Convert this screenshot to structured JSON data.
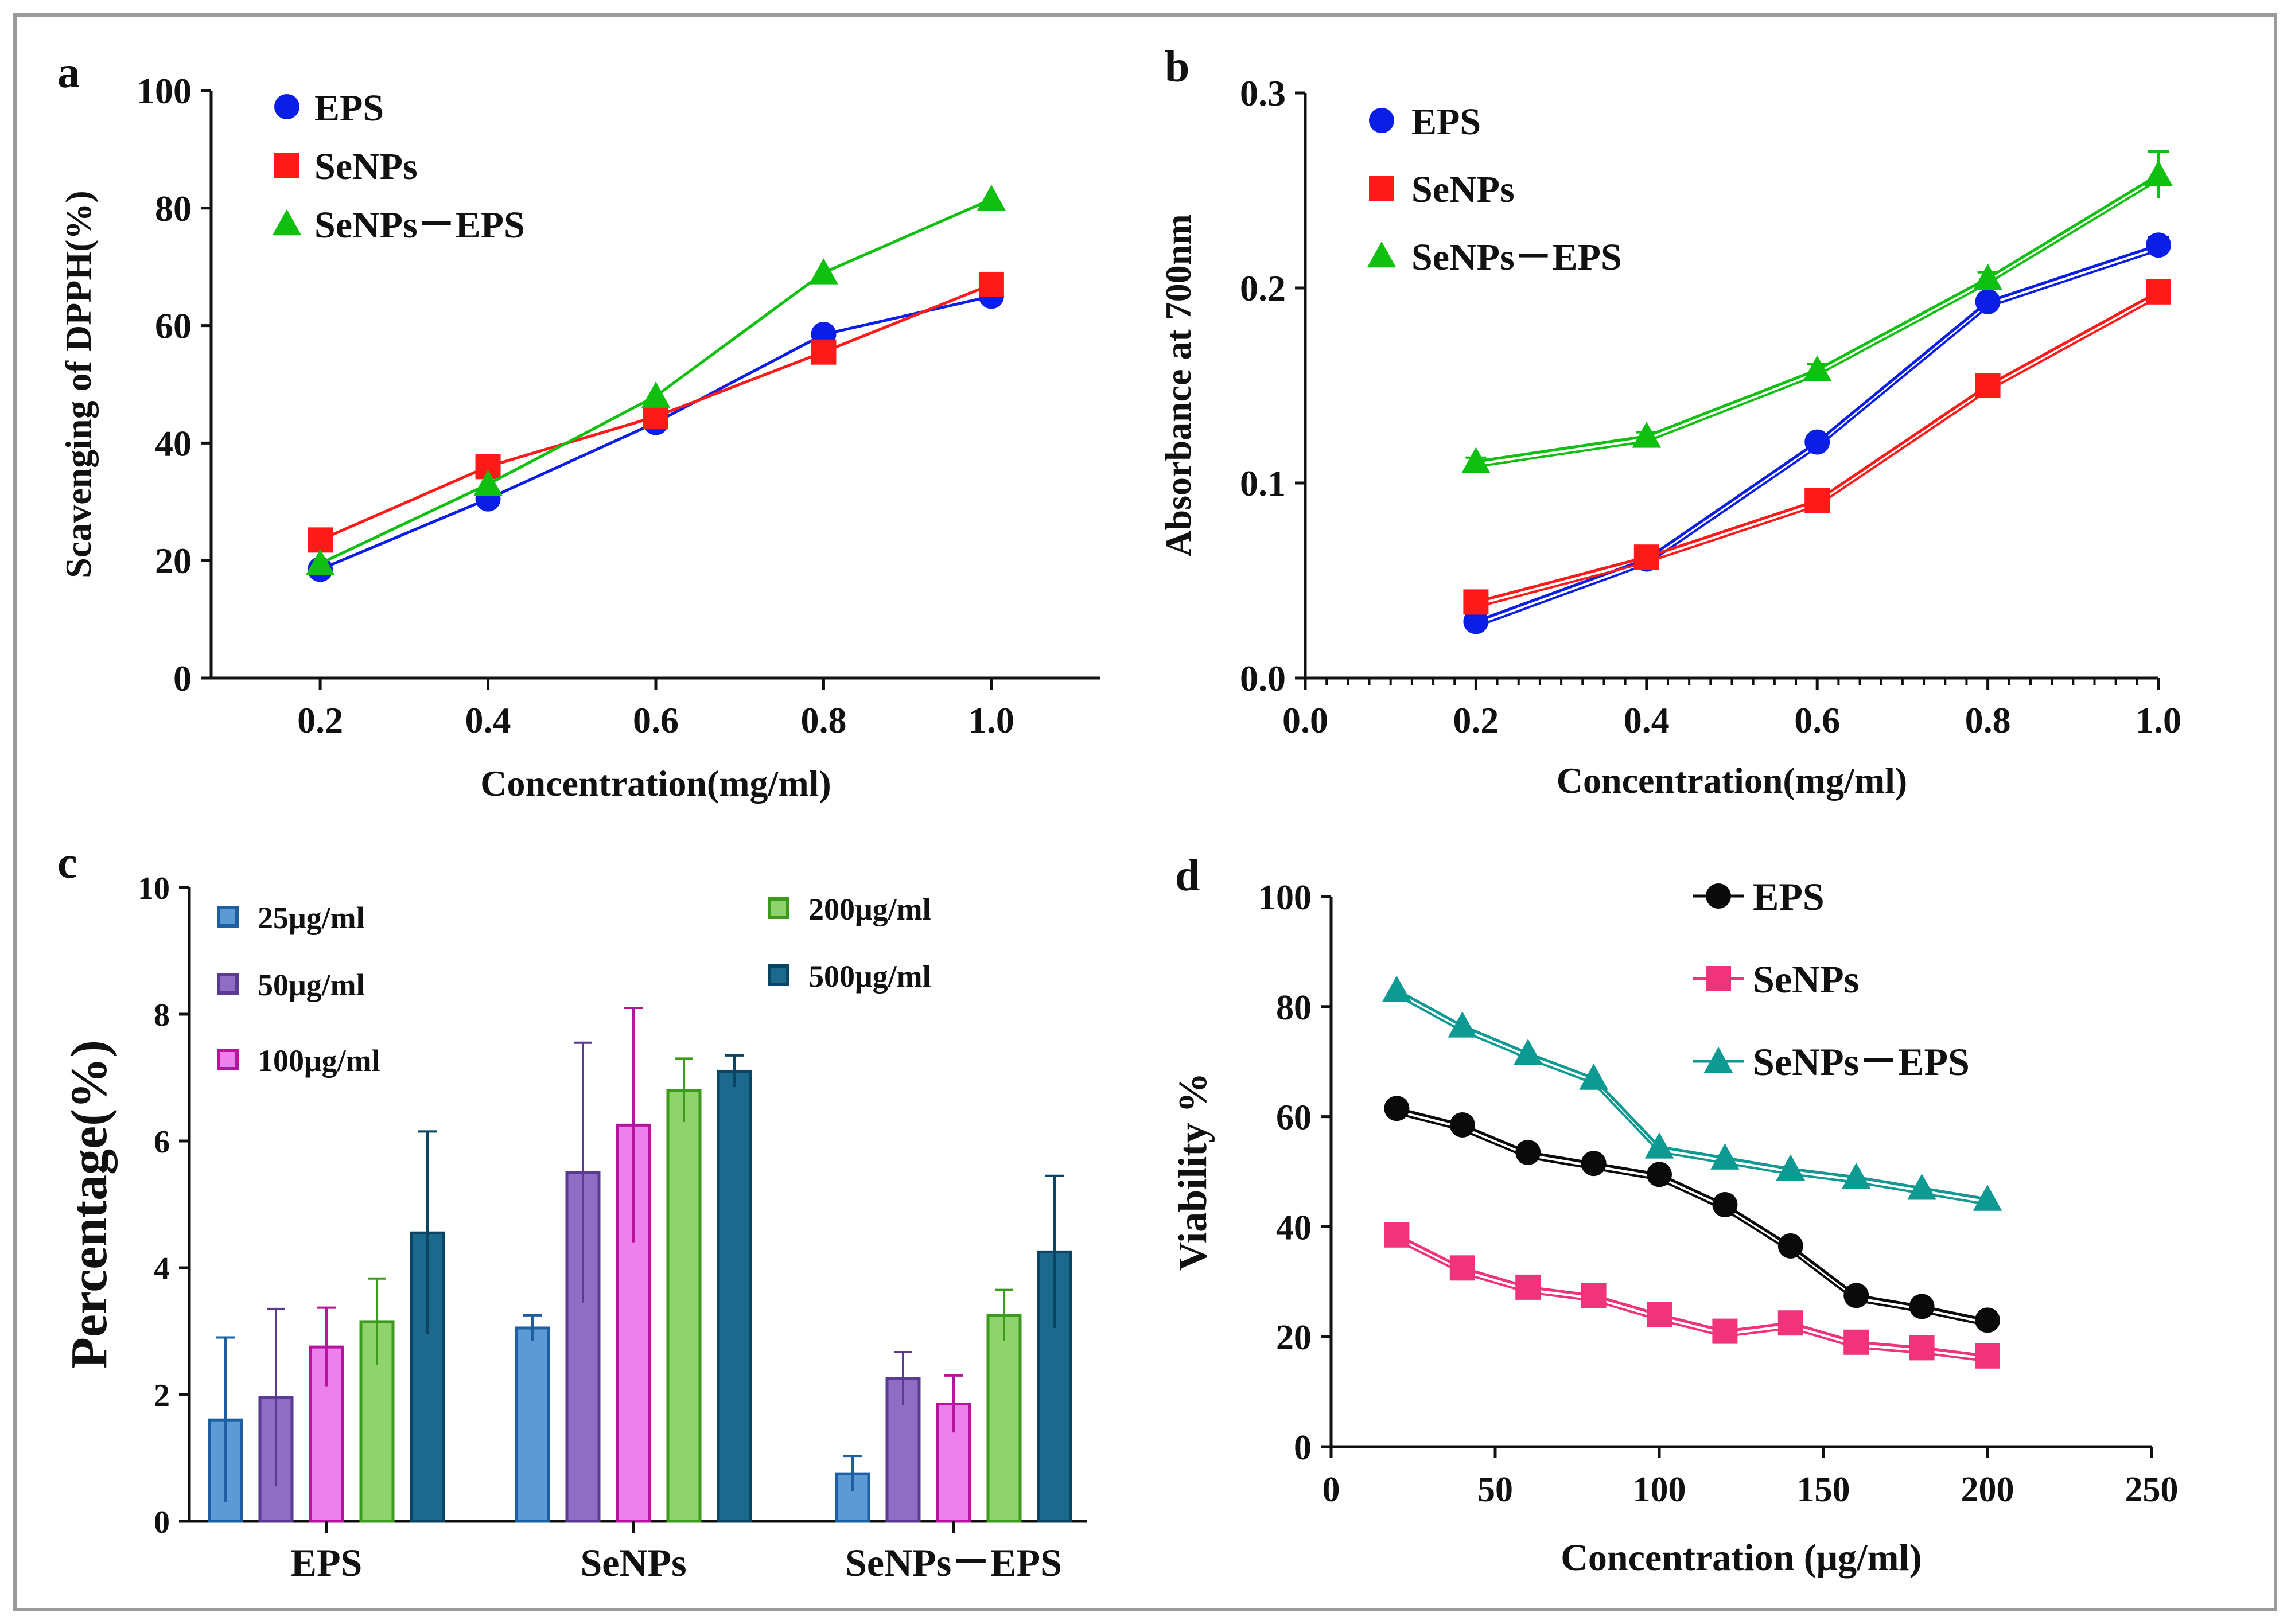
{
  "panels": {
    "a": "a",
    "b": "b",
    "c": "c",
    "d": "d"
  },
  "chart_data": [
    {
      "id": "a",
      "type": "line",
      "title": "",
      "xlabel": "Concentration(mg/ml)",
      "ylabel": "Scavenging of DPPH(%)",
      "x": [
        0.2,
        0.4,
        0.6,
        0.8,
        1.0
      ],
      "xlim": [
        0.07,
        1.13
      ],
      "ylim": [
        0,
        100
      ],
      "xticks": [
        0.2,
        0.4,
        0.6,
        0.8,
        1.0
      ],
      "xtick_labels": [
        "0.2",
        "0.4",
        "0.6",
        "0.8",
        "1.0"
      ],
      "yticks": [
        0,
        20,
        40,
        60,
        80,
        100
      ],
      "ytick_labels": [
        "0",
        "20",
        "40",
        "60",
        "80",
        "100"
      ],
      "legend_position": "top-left",
      "series": [
        {
          "name": "EPS",
          "marker": "circle",
          "color": "#0a1ee6",
          "values": [
            18.5,
            30.5,
            43.5,
            58.5,
            65.0
          ]
        },
        {
          "name": "SeNPs",
          "marker": "square",
          "color": "#ff1a1a",
          "values": [
            23.5,
            36.0,
            44.5,
            55.5,
            67.0
          ]
        },
        {
          "name": "SeNPs－EPS",
          "marker": "triangle",
          "color": "#10c010",
          "values": [
            19.5,
            33.0,
            48.0,
            69.0,
            81.5
          ]
        }
      ]
    },
    {
      "id": "b",
      "type": "line",
      "title": "",
      "xlabel": "Concentration(mg/ml)",
      "ylabel": "Absorbance at 700nm",
      "x": [
        0.2,
        0.4,
        0.6,
        0.8,
        1.0
      ],
      "xlim": [
        0.0,
        1.0
      ],
      "ylim": [
        0.0,
        0.3
      ],
      "xticks": [
        0.0,
        0.2,
        0.4,
        0.6,
        0.8,
        1.0
      ],
      "xtick_labels": [
        "0.0",
        "0.2",
        "0.4",
        "0.6",
        "0.8",
        "1.0"
      ],
      "yticks": [
        0.0,
        0.1,
        0.2,
        0.3
      ],
      "ytick_labels": [
        "0.0",
        "0.1",
        "0.2",
        "0.3"
      ],
      "legend_position": "top-left",
      "series": [
        {
          "name": "EPS",
          "marker": "circle",
          "color": "#0a1ee6",
          "values": [
            0.029,
            0.061,
            0.121,
            0.193,
            0.222
          ],
          "errors": [
            0.002,
            0.002,
            0.003,
            0.003,
            0.004
          ]
        },
        {
          "name": "SeNPs",
          "marker": "square",
          "color": "#ff1a1a",
          "values": [
            0.039,
            0.062,
            0.091,
            0.15,
            0.198
          ],
          "errors": [
            0.002,
            0.002,
            0.003,
            0.003,
            0.003
          ]
        },
        {
          "name": "SeNPs－EPS",
          "marker": "triangle",
          "color": "#10c010",
          "values": [
            0.111,
            0.124,
            0.158,
            0.205,
            0.258
          ],
          "errors": [
            0.002,
            0.002,
            0.003,
            0.003,
            0.012
          ]
        }
      ]
    },
    {
      "id": "c",
      "type": "bar",
      "title": "",
      "xlabel": "",
      "ylabel": "Percentage(%)",
      "categories": [
        "EPS",
        "SeNPs",
        "SeNPs－EPS"
      ],
      "ylim": [
        0,
        10
      ],
      "yticks": [
        0,
        2,
        4,
        6,
        8,
        10
      ],
      "ytick_labels": [
        "0",
        "2",
        "4",
        "6",
        "8",
        "10"
      ],
      "legend_position": "top",
      "series": [
        {
          "name": "25μg/ml",
          "fill": "#5b9ad5",
          "edge": "#1d5fa0",
          "values": [
            1.6,
            3.05,
            0.75
          ],
          "errors": [
            1.3,
            0.2,
            0.28
          ]
        },
        {
          "name": "50μg/ml",
          "fill": "#8e6ec4",
          "edge": "#5b3a94",
          "values": [
            1.95,
            5.5,
            2.25
          ],
          "errors": [
            1.4,
            2.05,
            0.42
          ]
        },
        {
          "name": "100μg/ml",
          "fill": "#ee80ee",
          "edge": "#b5149e",
          "values": [
            2.75,
            6.25,
            1.85
          ],
          "errors": [
            0.62,
            1.85,
            0.45
          ]
        },
        {
          "name": "200μg/ml",
          "fill": "#8fd36d",
          "edge": "#3c9a1c",
          "values": [
            3.15,
            6.8,
            3.25
          ],
          "errors": [
            0.68,
            0.5,
            0.4
          ]
        },
        {
          "name": "500μg/ml",
          "fill": "#1b6a8e",
          "edge": "#0b4563",
          "values": [
            4.55,
            7.1,
            4.25
          ],
          "errors": [
            1.6,
            0.25,
            1.2
          ]
        }
      ]
    },
    {
      "id": "d",
      "type": "line",
      "title": "",
      "xlabel": "Concentration (μg/ml)",
      "ylabel": "Viability %",
      "x": [
        20,
        40,
        60,
        80,
        100,
        120,
        140,
        160,
        180,
        200
      ],
      "xlim": [
        0,
        250
      ],
      "ylim": [
        0,
        100
      ],
      "xticks": [
        0,
        50,
        100,
        150,
        200,
        250
      ],
      "xtick_labels": [
        "0",
        "50",
        "100",
        "150",
        "200",
        "250"
      ],
      "yticks": [
        0,
        20,
        40,
        60,
        80,
        100
      ],
      "ytick_labels": [
        "0",
        "20",
        "40",
        "60",
        "80",
        "100"
      ],
      "legend_position": "top-right",
      "series": [
        {
          "name": "EPS",
          "marker": "circle",
          "color": "#0a0a0a",
          "values": [
            61.5,
            58.5,
            53.5,
            51.5,
            49.5,
            44.0,
            36.5,
            27.5,
            25.5,
            23.0
          ]
        },
        {
          "name": "SeNPs",
          "marker": "square",
          "color": "#f0337a",
          "values": [
            38.5,
            32.5,
            29.0,
            27.5,
            24.0,
            21.0,
            22.5,
            19.0,
            18.0,
            16.5
          ]
        },
        {
          "name": "SeNPs－EPS",
          "marker": "triangle",
          "color": "#0e9993",
          "values": [
            83.0,
            76.5,
            71.5,
            67.0,
            54.5,
            52.5,
            50.5,
            49.0,
            47.0,
            45.0
          ]
        }
      ]
    }
  ]
}
